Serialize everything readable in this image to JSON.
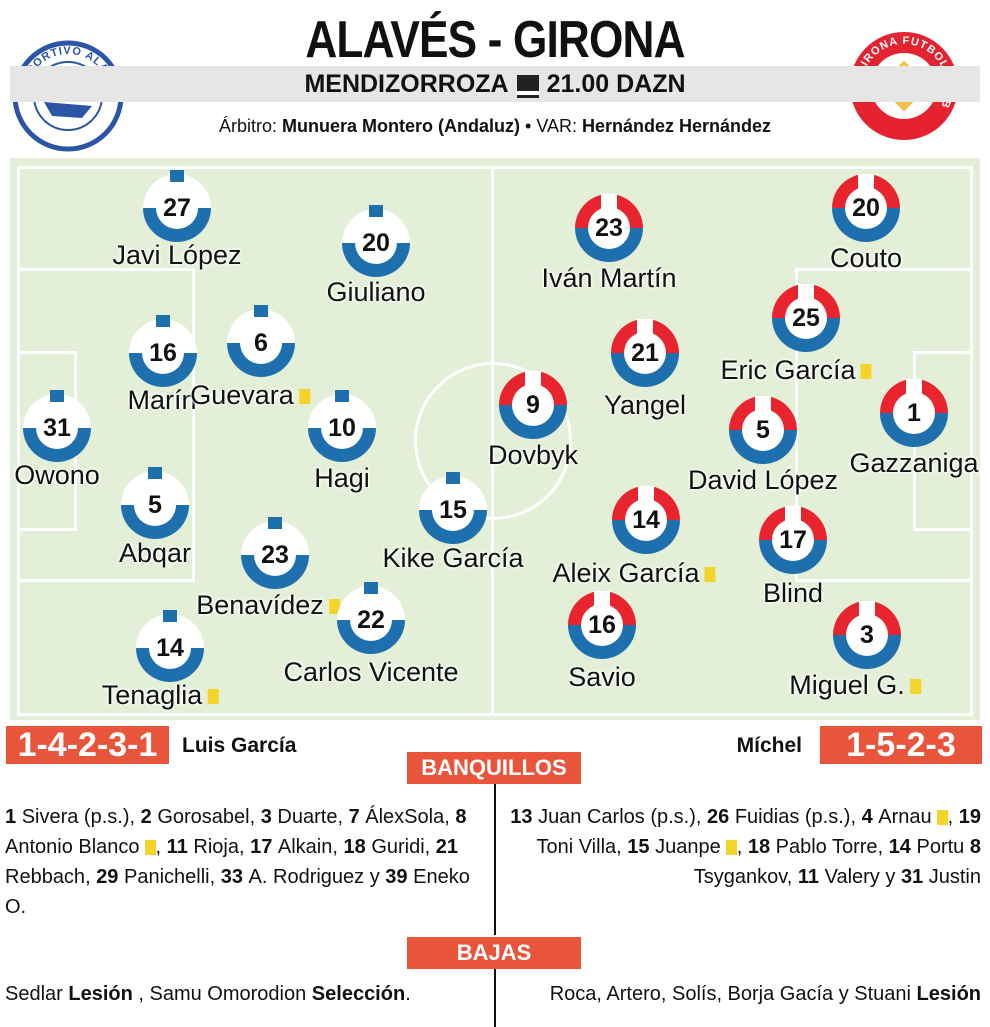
{
  "header": {
    "title": "ALAVÉS - GIRONA",
    "venue": "MENDIZORROZA",
    "tv_icon": "television-icon",
    "broadcast": "21.00 DAZN",
    "referee_label": "Árbitro:",
    "referee": "Munuera Montero (Andaluz)",
    "separator": "•",
    "var_label": "VAR:",
    "var": "Hernández Hernández",
    "home_crest_text": "DEPORTIVO ALAVÉS",
    "away_crest_text": "GIRONA FUTBOL CLUB"
  },
  "colors": {
    "pitch": "#e3efd6",
    "home_blue": "#1e6fae",
    "away_red": "#e8242f",
    "accent": "#e9553a",
    "yellow_card": "#f5d42a"
  },
  "home": {
    "formation": "1-4-2-3-1",
    "coach": "Luis García",
    "players": [
      {
        "number": "27",
        "name": "Javi López",
        "yellow_card": false
      },
      {
        "number": "20",
        "name": "Giuliano",
        "yellow_card": false
      },
      {
        "number": "16",
        "name": "Marín",
        "yellow_card": false
      },
      {
        "number": "6",
        "name": "Guevara",
        "yellow_card": true
      },
      {
        "number": "31",
        "name": "Owono",
        "yellow_card": false
      },
      {
        "number": "10",
        "name": "Hagi",
        "yellow_card": false
      },
      {
        "number": "5",
        "name": "Abqar",
        "yellow_card": false
      },
      {
        "number": "15",
        "name": "Kike García",
        "yellow_card": false
      },
      {
        "number": "23",
        "name": "Benavídez",
        "yellow_card": true
      },
      {
        "number": "22",
        "name": "Carlos Vicente",
        "yellow_card": false
      },
      {
        "number": "14",
        "name": "Tenaglia",
        "yellow_card": true
      }
    ],
    "bench": [
      {
        "n": "1",
        "name": "Sivera (p.s.)",
        "card": false,
        "sep": ", "
      },
      {
        "n": "2",
        "name": "Gorosabel",
        "card": false,
        "sep": ", "
      },
      {
        "n": "3",
        "name": "Duarte",
        "card": false,
        "sep": ", "
      },
      {
        "n": "7",
        "name": "ÁlexSola",
        "card": false,
        "sep": ", "
      },
      {
        "n": "8",
        "name": "Antonio Blanco",
        "card": true,
        "sep": ", "
      },
      {
        "n": "11",
        "name": "Rioja",
        "card": false,
        "sep": ", "
      },
      {
        "n": "17",
        "name": "Alkain",
        "card": false,
        "sep": ", "
      },
      {
        "n": "18",
        "name": "Guridi",
        "card": false,
        "sep": ", "
      },
      {
        "n": "21",
        "name": "Rebbach",
        "card": false,
        "sep": ", "
      },
      {
        "n": "29",
        "name": "Panichelli",
        "card": false,
        "sep": ", "
      },
      {
        "n": "33",
        "name": "A. Rodriguez",
        "card": false,
        "sep": " y "
      },
      {
        "n": "39",
        "name": "Eneko O.",
        "card": false,
        "sep": ""
      }
    ],
    "absences": [
      {
        "text": "Sedlar ",
        "bold": false
      },
      {
        "text": "Lesión",
        "bold": true
      },
      {
        "text": " , Samu Omorodion ",
        "bold": false
      },
      {
        "text": "Selección",
        "bold": true
      },
      {
        "text": ".",
        "bold": false
      }
    ]
  },
  "away": {
    "formation": "1-5-2-3",
    "coach": "Míchel",
    "players": [
      {
        "number": "23",
        "name": "Iván Martín",
        "yellow_card": false
      },
      {
        "number": "20",
        "name": "Couto",
        "yellow_card": false
      },
      {
        "number": "25",
        "name": "Eric García",
        "yellow_card": true
      },
      {
        "number": "21",
        "name": "Yangel",
        "yellow_card": false
      },
      {
        "number": "9",
        "name": "Dovbyk",
        "yellow_card": false
      },
      {
        "number": "1",
        "name": "Gazzaniga",
        "yellow_card": false
      },
      {
        "number": "5",
        "name": "David López",
        "yellow_card": false
      },
      {
        "number": "14",
        "name": "Aleix García",
        "yellow_card": true
      },
      {
        "number": "17",
        "name": "Blind",
        "yellow_card": false
      },
      {
        "number": "16",
        "name": "Savio",
        "yellow_card": false
      },
      {
        "number": "3",
        "name": "Miguel G.",
        "yellow_card": true
      }
    ],
    "bench": [
      {
        "n": "13",
        "name": "Juan Carlos (p.s.)",
        "card": false,
        "sep": ", "
      },
      {
        "n": "26",
        "name": "Fuidias (p.s.)",
        "card": false,
        "sep": ", "
      },
      {
        "n": "4",
        "name": "Arnau",
        "card": true,
        "sep": ", "
      },
      {
        "n": "19",
        "name": "Toni Villa",
        "card": false,
        "sep": ", "
      },
      {
        "n": "15",
        "name": "Juanpe",
        "card": true,
        "sep": ", "
      },
      {
        "n": "18",
        "name": "Pablo Torre",
        "card": false,
        "sep": ",  "
      },
      {
        "n": "14",
        "name": "Portu",
        "card": false,
        "sep": " "
      },
      {
        "n": "8",
        "name": "Tsygankov",
        "card": false,
        "sep": ", "
      },
      {
        "n": "11",
        "name": "Valery",
        "card": false,
        "sep": " y "
      },
      {
        "n": "31",
        "name": "Justin",
        "card": false,
        "sep": ""
      }
    ],
    "absences": [
      {
        "text": "Roca, Artero, Solís, Borja Gacía y Stuani ",
        "bold": false
      },
      {
        "text": "Lesión",
        "bold": true
      }
    ]
  },
  "sections": {
    "bench": "BANQUILLOS",
    "absences": "BAJAS"
  }
}
